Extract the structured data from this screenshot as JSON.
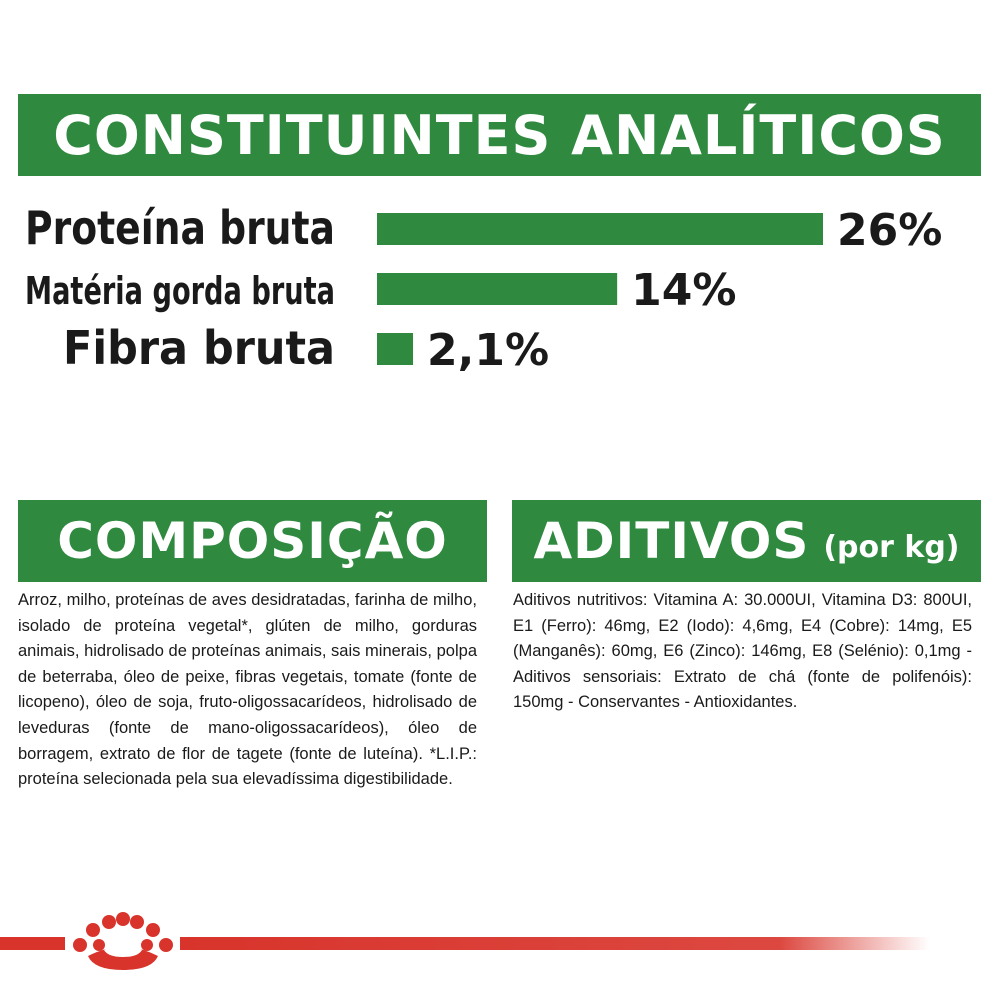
{
  "header": {
    "title": "CONSTITUINTES ANALÍTICOS"
  },
  "chart_data": {
    "type": "bar",
    "orientation": "horizontal",
    "title": "CONSTITUINTES ANALÍTICOS",
    "categories": [
      "Proteína bruta",
      "Matéria gorda bruta",
      "Fibra bruta"
    ],
    "values": [
      26,
      14,
      2.1
    ],
    "value_labels": [
      "26%",
      "14%",
      "2,1%"
    ],
    "unit": "%",
    "xlim": [
      0,
      26
    ],
    "grid": false,
    "bar_color": "#2f8a40"
  },
  "composition": {
    "title": "COMPOSIÇÃO",
    "text": "Arroz, milho, proteínas de aves desidratadas, farinha de milho, isolado de proteína vegetal*, glúten de milho, gorduras animais, hidrolisado de proteínas animais, sais minerais, polpa de beterraba, óleo de peixe, fibras vegetais, tomate (fonte de licopeno), óleo de soja, fruto-oligossacarídeos, hidrolisado de leveduras (fonte de mano-oligossacarídeos), óleo de borragem, extrato de flor de tagete (fonte de luteína). *L.I.P.: proteína selecionada pela sua elevadíssima digestibilidade."
  },
  "additives": {
    "title": "ADITIVOS",
    "subtitle": "(por kg)",
    "text": "Aditivos nutritivos: Vitamina A: 30.000UI, Vitamina D3: 800UI, E1 (Ferro): 46mg, E2 (Iodo): 4,6mg, E4 (Cobre): 14mg, E5 (Manganês): 60mg, E6 (Zinco): 146mg, E8 (Selénio): 0,1mg - Aditivos sensoriais: Extrato de chá (fonte de polifenóis): 150mg - Conservantes - Antioxidantes."
  },
  "colors": {
    "brand_green": "#2f8a40",
    "brand_red": "#d8342b"
  },
  "footer": {
    "logo_icon": "royal-canin-crown-icon"
  }
}
